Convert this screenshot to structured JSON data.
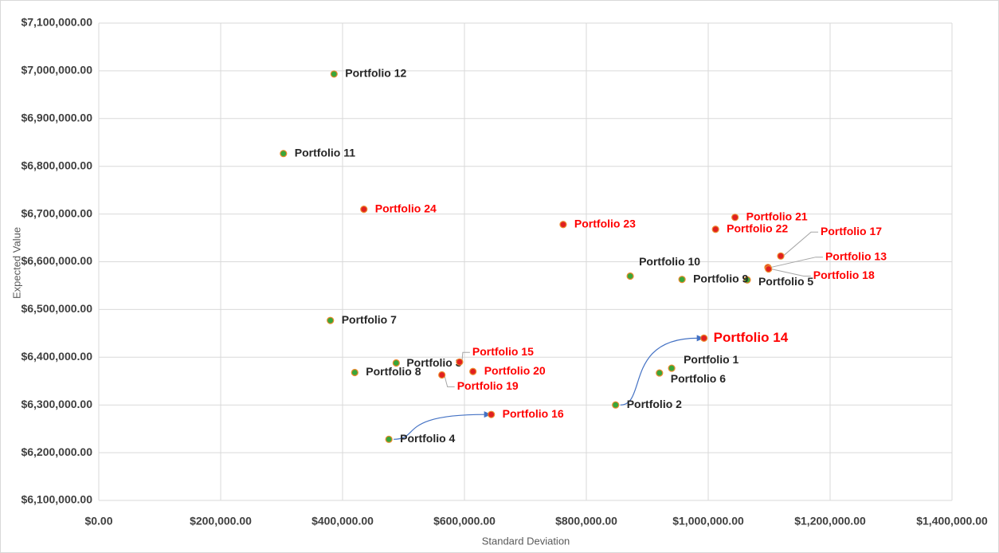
{
  "chart_data": {
    "type": "scatter",
    "x_label": "Standard Deviation",
    "y_label": "Expected Value",
    "labels": [
      "Portfolio 1",
      "Portfolio 2",
      "Portfolio 3",
      "Portfolio 4",
      "Portfolio 5",
      "Portfolio 6",
      "Portfolio 7",
      "Portfolio 8",
      "Portfolio 9",
      "Portfolio 10",
      "Portfolio 11",
      "Portfolio 12",
      "Portfolio 13",
      "Portfolio 14",
      "Portfolio 15",
      "Portfolio 16",
      "Portfolio 17",
      "Portfolio 18",
      "Portfolio 19",
      "Portfolio 20",
      "Portfolio 21",
      "Portfolio 22",
      "Portfolio 23",
      "Portfolio 24"
    ],
    "x": [
      940000,
      848000,
      488000,
      476000,
      1064000,
      920000,
      380000,
      420000,
      957000,
      872000,
      303000,
      386000,
      1098000,
      993000,
      592000,
      644000,
      1119000,
      1099000,
      563000,
      614000,
      1044000,
      1012000,
      762000,
      435000
    ],
    "values": [
      6377000,
      6300000,
      6388000,
      6228000,
      6562000,
      6367000,
      6477000,
      6368000,
      6563000,
      6570000,
      6826700,
      6993300,
      6588000,
      6440000,
      6390000,
      6280000,
      6612000,
      6585000,
      6363000,
      6370000,
      6693000,
      6668000,
      6678000,
      6710000
    ],
    "point_colors": [
      "#3aa63a",
      "#3aa63a",
      "#3aa63a",
      "#3aa63a",
      "#3aa63a",
      "#3aa63a",
      "#3aa63a",
      "#3aa63a",
      "#3aa63a",
      "#3aa63a",
      "#3aa63a",
      "#3aa63a",
      "#e02020",
      "#e02020",
      "#e02020",
      "#e02020",
      "#e02020",
      "#e02020",
      "#e02020",
      "#e02020",
      "#e02020",
      "#e02020",
      "#e02020",
      "#e02020"
    ],
    "label_colors": [
      "#262626",
      "#262626",
      "#262626",
      "#262626",
      "#262626",
      "#262626",
      "#262626",
      "#262626",
      "#262626",
      "#262626",
      "#262626",
      "#262626",
      "#ff0000",
      "#ff0000",
      "#ff0000",
      "#ff0000",
      "#ff0000",
      "#ff0000",
      "#ff0000",
      "#ff0000",
      "#ff0000",
      "#ff0000",
      "#ff0000",
      "#ff0000"
    ],
    "marker_edge": "#ed8b2e",
    "connector_color": "#4472c4",
    "xlim": [
      0,
      1400000
    ],
    "xticks": [
      {
        "value": 0,
        "label": "$0.00"
      },
      {
        "value": 200000,
        "label": "$200,000.00"
      },
      {
        "value": 400000,
        "label": "$400,000.00"
      },
      {
        "value": 600000,
        "label": "$600,000.00"
      },
      {
        "value": 800000,
        "label": "$800,000.00"
      },
      {
        "value": 1000000,
        "label": "$1,000,000.00"
      },
      {
        "value": 1200000,
        "label": "$1,200,000.00"
      },
      {
        "value": 1400000,
        "label": "$1,400,000.00"
      }
    ],
    "ylim": [
      6100000,
      7100000
    ],
    "yticks": [
      {
        "value": 6100000,
        "label": "$6,100,000.00"
      },
      {
        "value": 6200000,
        "label": "$6,200,000.00"
      },
      {
        "value": 6300000,
        "label": "$6,300,000.00"
      },
      {
        "value": 6400000,
        "label": "$6,400,000.00"
      },
      {
        "value": 6500000,
        "label": "$6,500,000.00"
      },
      {
        "value": 6600000,
        "label": "$6,600,000.00"
      },
      {
        "value": 6700000,
        "label": "$6,700,000.00"
      },
      {
        "value": 6800000,
        "label": "$6,800,000.00"
      },
      {
        "value": 6900000,
        "label": "$6,900,000.00"
      },
      {
        "value": 7000000,
        "label": "$7,000,000.00"
      },
      {
        "value": 7100000,
        "label": "$7,100,000.00"
      }
    ],
    "grid": true
  }
}
